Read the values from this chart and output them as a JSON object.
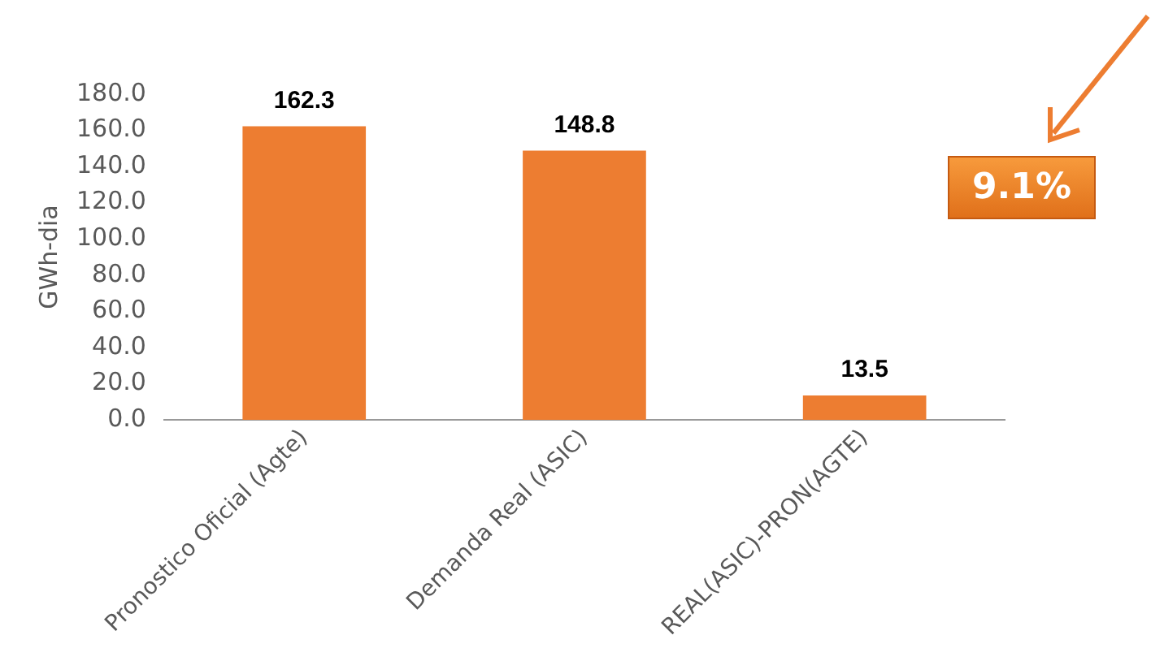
{
  "chart_data": {
    "type": "bar",
    "ylabel": "GWh-dia",
    "categories": [
      "Pronostico Oficial (Agte)",
      "Demanda Real (ASIC)",
      "REAL(ASIC)-PRON(AGTE)"
    ],
    "values": [
      162.3,
      148.8,
      13.5
    ],
    "color": "#ed7d31",
    "data_labels": true,
    "grid": false,
    "legend": false,
    "ylim": [
      0,
      180
    ],
    "yticks": [
      {
        "value": 0,
        "label": "0.0"
      },
      {
        "value": 20,
        "label": "20.0"
      },
      {
        "value": 40,
        "label": "40.0"
      },
      {
        "value": 60,
        "label": "60.0"
      },
      {
        "value": 80,
        "label": "80.0"
      },
      {
        "value": 100,
        "label": "100.0"
      },
      {
        "value": 120,
        "label": "120.0"
      },
      {
        "value": 140,
        "label": "140.0"
      },
      {
        "value": 160,
        "label": "160.0"
      },
      {
        "value": 180,
        "label": "180.0"
      }
    ],
    "annotations": [
      "9.1%"
    ]
  }
}
